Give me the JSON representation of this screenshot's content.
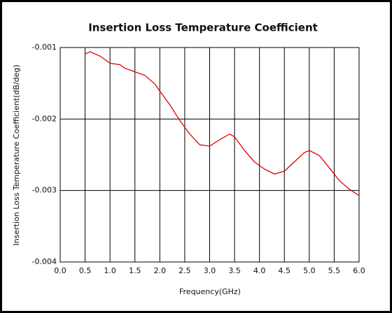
{
  "chart_data": {
    "type": "line",
    "title": "Insertion Loss Temperature Coefficient",
    "x_label": "Frequency(GHz)",
    "y_label": "Insertion Loss Temperature Coefficient(dB/deg)",
    "x": [
      0.5,
      0.6,
      0.8,
      1.0,
      1.2,
      1.3,
      1.5,
      1.7,
      1.9,
      2.0,
      2.2,
      2.4,
      2.6,
      2.8,
      3.0,
      3.2,
      3.4,
      3.5,
      3.7,
      3.9,
      4.1,
      4.3,
      4.5,
      4.7,
      4.9,
      5.0,
      5.2,
      5.4,
      5.6,
      5.8,
      6.0
    ],
    "series": [
      {
        "color": "#e00000",
        "values": [
          -0.00109,
          -0.00106,
          -0.00112,
          -0.00122,
          -0.00124,
          -0.00129,
          -0.00134,
          -0.00139,
          -0.00151,
          -0.00161,
          -0.0018,
          -0.00202,
          -0.00221,
          -0.00236,
          -0.00238,
          -0.00229,
          -0.00221,
          -0.00225,
          -0.00244,
          -0.0026,
          -0.0027,
          -0.00277,
          -0.00273,
          -0.0026,
          -0.00247,
          -0.00244,
          -0.00251,
          -0.00268,
          -0.00286,
          -0.00298,
          -0.00307
        ]
      }
    ],
    "xlim": [
      0,
      6
    ],
    "xticks": [
      {
        "value": 0,
        "label": "0.0"
      },
      0.5,
      {
        "value": 1,
        "label": "1.0"
      },
      1.5,
      {
        "value": 2,
        "label": "2.0"
      },
      2.5,
      {
        "value": 3,
        "label": "3.0"
      },
      3.5,
      {
        "value": 4,
        "label": "4.0"
      },
      4.5,
      {
        "value": 5,
        "label": "5.0"
      },
      5.5,
      {
        "value": 6,
        "label": "6.0"
      }
    ],
    "ylim": [
      -0.004,
      -0.001
    ],
    "yticks": [
      -0.004,
      -0.003,
      -0.002,
      -0.001
    ],
    "grid": true
  }
}
